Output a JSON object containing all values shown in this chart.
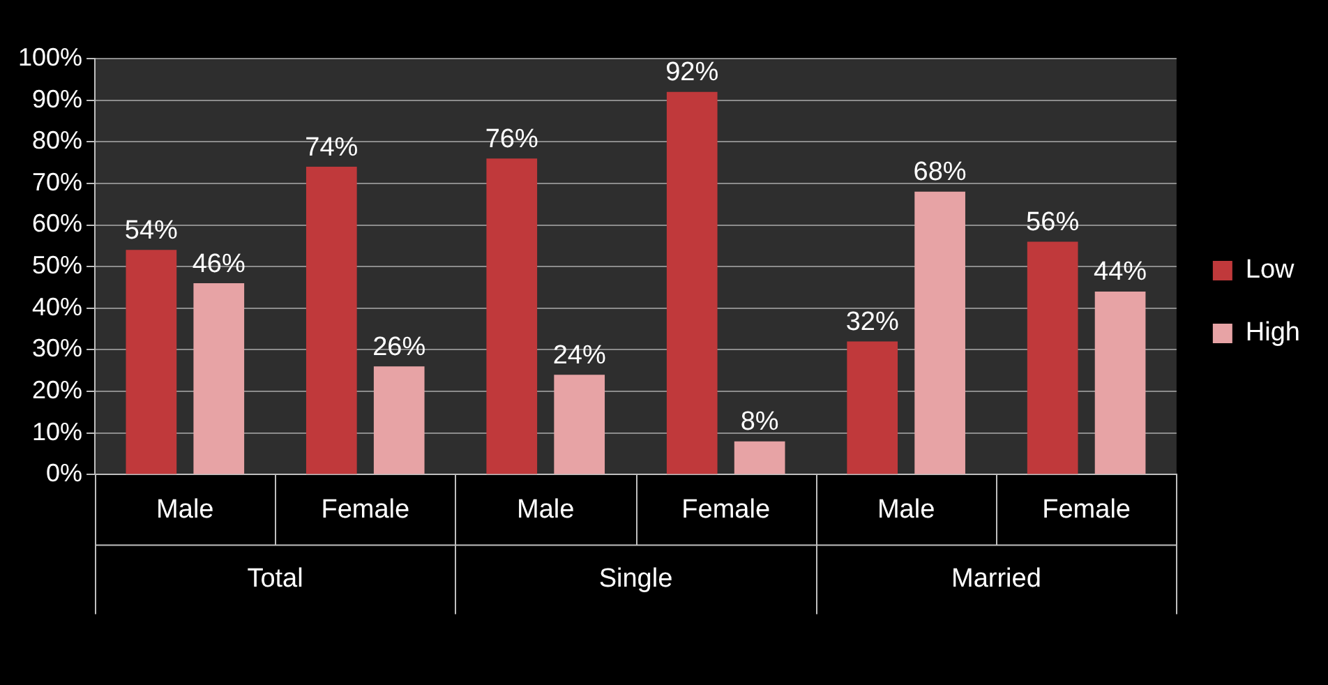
{
  "chart_data": {
    "type": "bar",
    "categories": [
      "Male",
      "Female",
      "Male",
      "Female",
      "Male",
      "Female"
    ],
    "annotations": [
      "Total",
      "Single",
      "Married"
    ],
    "series": [
      {
        "name": "Low",
        "color": "#c0393b",
        "values": [
          54,
          74,
          76,
          92,
          32,
          56
        ],
        "value_labels": [
          "54%",
          "74%",
          "76%",
          "92%",
          "32%",
          "56%"
        ]
      },
      {
        "name": "High",
        "color": "#e7a3a5",
        "values": [
          46,
          26,
          24,
          8,
          68,
          44
        ],
        "value_labels": [
          "46%",
          "26%",
          "24%",
          "8%",
          "68%",
          "44%"
        ]
      }
    ],
    "ylim": [
      0,
      100
    ],
    "yticks": [
      {
        "value": 0,
        "label": "0%"
      },
      {
        "value": 10,
        "label": "10%"
      },
      {
        "value": 20,
        "label": "20%"
      },
      {
        "value": 30,
        "label": "30%"
      },
      {
        "value": 40,
        "label": "40%"
      },
      {
        "value": 50,
        "label": "50%"
      },
      {
        "value": 60,
        "label": "60%"
      },
      {
        "value": 70,
        "label": "70%"
      },
      {
        "value": 80,
        "label": "80%"
      },
      {
        "value": 90,
        "label": "90%"
      },
      {
        "value": 100,
        "label": "100%"
      }
    ],
    "grid": "y",
    "legend": "right"
  }
}
